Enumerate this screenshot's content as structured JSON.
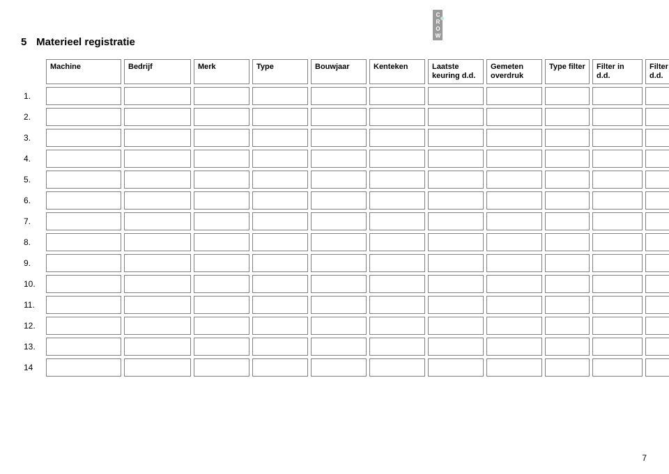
{
  "logo_text": "CROW",
  "section_number": "5",
  "section_title": "Materieel registratie",
  "columns": [
    "Machine",
    "Bedrijf",
    "Merk",
    "Type",
    "Bouwjaar",
    "Kenteken",
    "Laatste keuring d.d.",
    "Gemeten overdruk",
    "Type filter",
    "Filter in d.d.",
    "Filter uit d.d."
  ],
  "row_numbers": [
    "1.",
    "2.",
    "3.",
    "4.",
    "5.",
    "6.",
    "7.",
    "8.",
    "9.",
    "10.",
    "11.",
    "12.",
    "13.",
    "14"
  ],
  "page_number": "7"
}
